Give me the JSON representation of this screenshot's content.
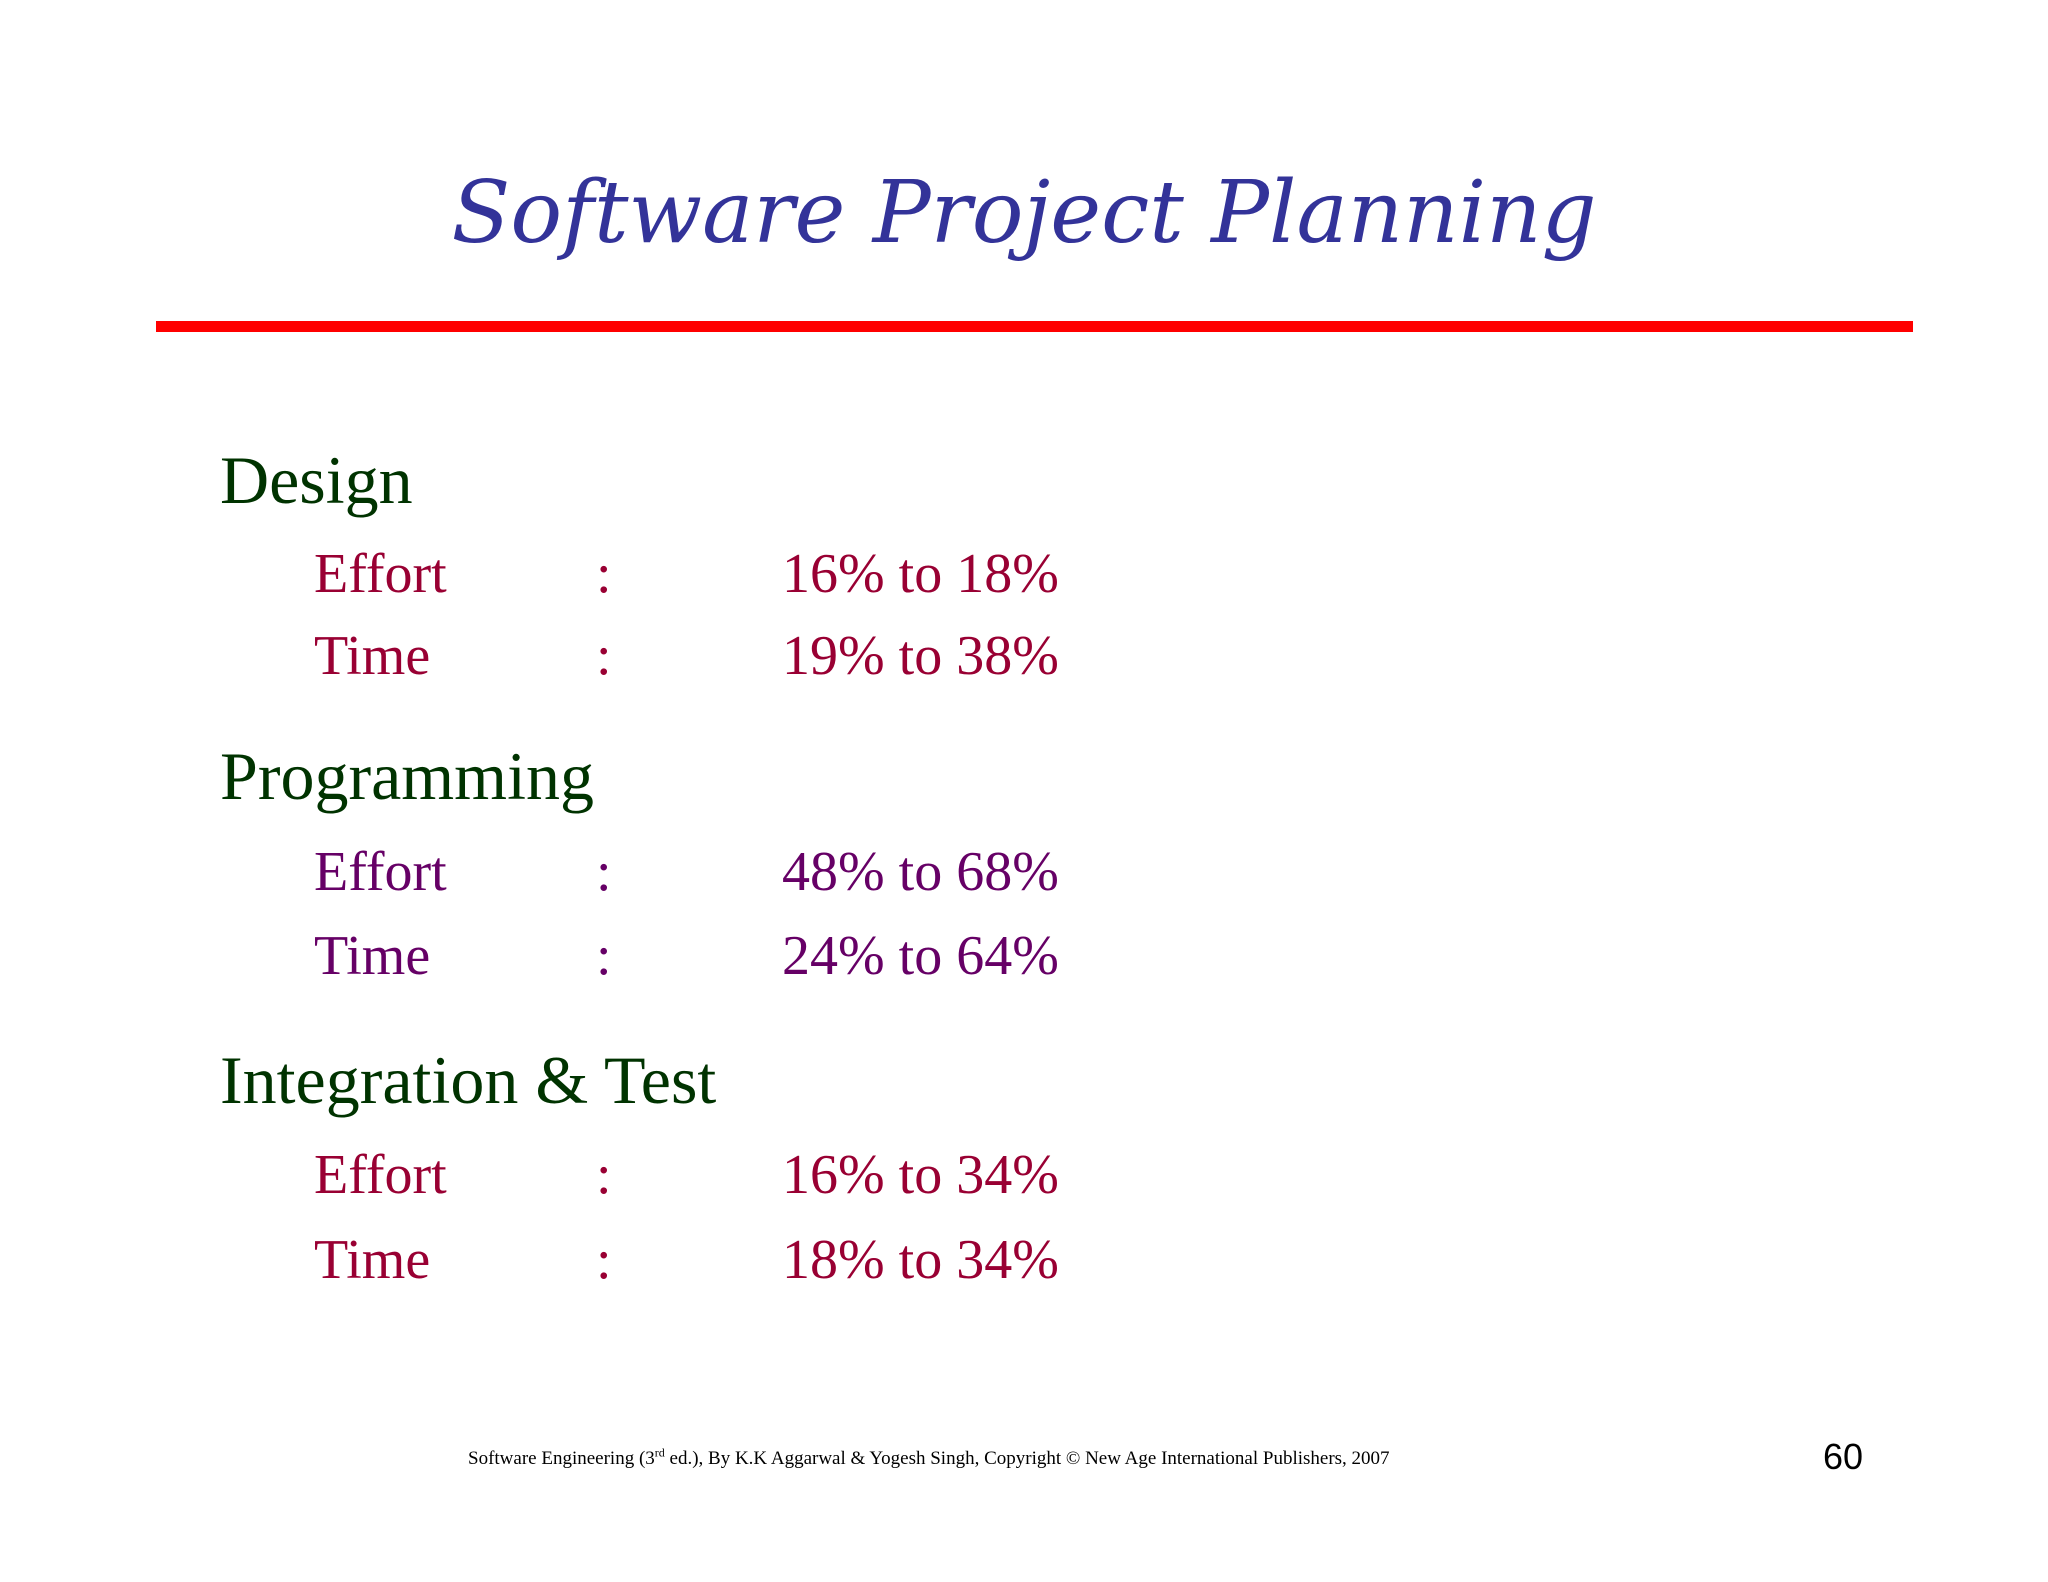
{
  "title": "Software Project Planning",
  "colors": {
    "title": "#333399",
    "rule": "#ff0000",
    "heading": "#003300",
    "item_red": "#990033",
    "item_purple": "#660066"
  },
  "sections": [
    {
      "heading": "Design",
      "rows": [
        {
          "label": "Effort",
          "sep": ":",
          "value": "16% to 18%"
        },
        {
          "label": "Time",
          "sep": ":",
          "value": "19% to 38%"
        }
      ]
    },
    {
      "heading": "Programming",
      "rows": [
        {
          "label": "Effort",
          "sep": ":",
          "value": "48% to 68%"
        },
        {
          "label": "Time",
          "sep": ":",
          "value": "24% to 64%"
        }
      ]
    },
    {
      "heading": "Integration & Test",
      "rows": [
        {
          "label": "Effort",
          "sep": ":",
          "value": "16% to 34%"
        },
        {
          "label": "Time",
          "sep": ":",
          "value": "18% to 34%"
        }
      ]
    }
  ],
  "footer": {
    "prefix": "Software Engineering (3",
    "superscript": "rd",
    "suffix": " ed.), By K.K Aggarwal & Yogesh Singh, Copyright © New Age International Publishers, 2007"
  },
  "page_number": "60"
}
